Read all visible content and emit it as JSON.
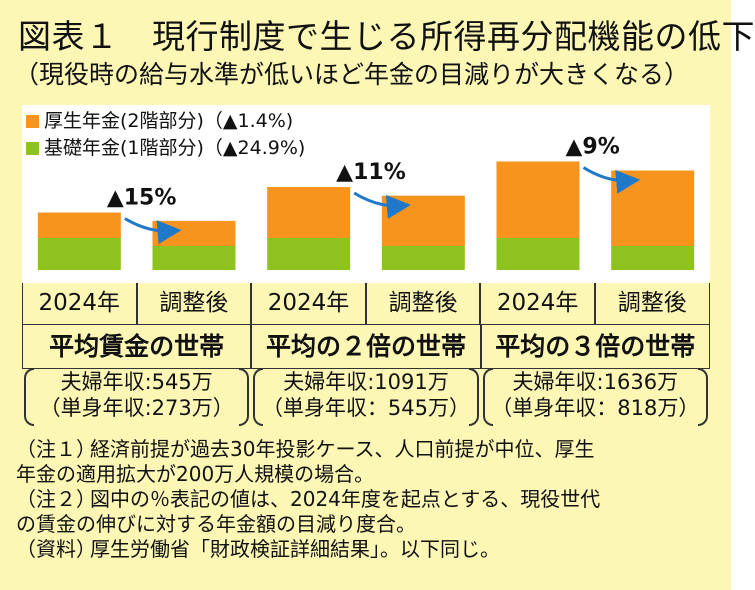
{
  "title": "図表１　現行制度で生じる所得再分配機能の低下",
  "subtitle": "（現役時の給与水準が低いほど年金の目減りが大きくなる）",
  "colors": {
    "orange": "#f7941d",
    "green": "#8dc21f",
    "arrow": "#1f78c8",
    "background": "#fdf7b6"
  },
  "chart_data": {
    "type": "bar",
    "stacked": true,
    "legend_position": "top-left",
    "grid": false,
    "legend": [
      {
        "name": "厚生年金(2階部分)（▲1.4%)",
        "color": "#f7941d"
      },
      {
        "name": "基礎年金(1階部分)（▲24.9%)",
        "color": "#8dc21f"
      }
    ],
    "groups": [
      {
        "label": "平均賃金の世帯",
        "change": "▲15%",
        "income": "夫婦年収:545万",
        "income_single": "（単身年収:273万）",
        "bars": [
          {
            "label": "2024年",
            "kousei": 0.75,
            "kiso": 1.0
          },
          {
            "label": "調整後",
            "kousei": 0.74,
            "kiso": 0.75
          }
        ]
      },
      {
        "label": "平均の２倍の世帯",
        "change": "▲11%",
        "income": "夫婦年収:1091万",
        "income_single": "（単身年収：545万）",
        "bars": [
          {
            "label": "2024年",
            "kousei": 1.5,
            "kiso": 1.0
          },
          {
            "label": "調整後",
            "kousei": 1.48,
            "kiso": 0.75
          }
        ]
      },
      {
        "label": "平均の３倍の世帯",
        "change": "▲9%",
        "income": "夫婦年収:1636万",
        "income_single": "（単身年収：818万）",
        "bars": [
          {
            "label": "2024年",
            "kousei": 2.25,
            "kiso": 1.0
          },
          {
            "label": "調整後",
            "kousei": 2.22,
            "kiso": 0.75
          }
        ]
      }
    ]
  },
  "notes": [
    {
      "label": "（注１）",
      "lines": [
        "経済前提が過去30年投影ケース、人口前提が中位、厚生",
        "年金の適用拡大が200万人規模の場合。"
      ]
    },
    {
      "label": "（注２）",
      "lines": [
        "図中の％表記の値は、2024年度を起点とする、現役世代",
        "の賃金の伸びに対する年金額の目減り度合。"
      ]
    },
    {
      "label": "（資料）",
      "lines": [
        "厚生労働省「財政検証詳細結果」。以下同じ。"
      ]
    }
  ]
}
